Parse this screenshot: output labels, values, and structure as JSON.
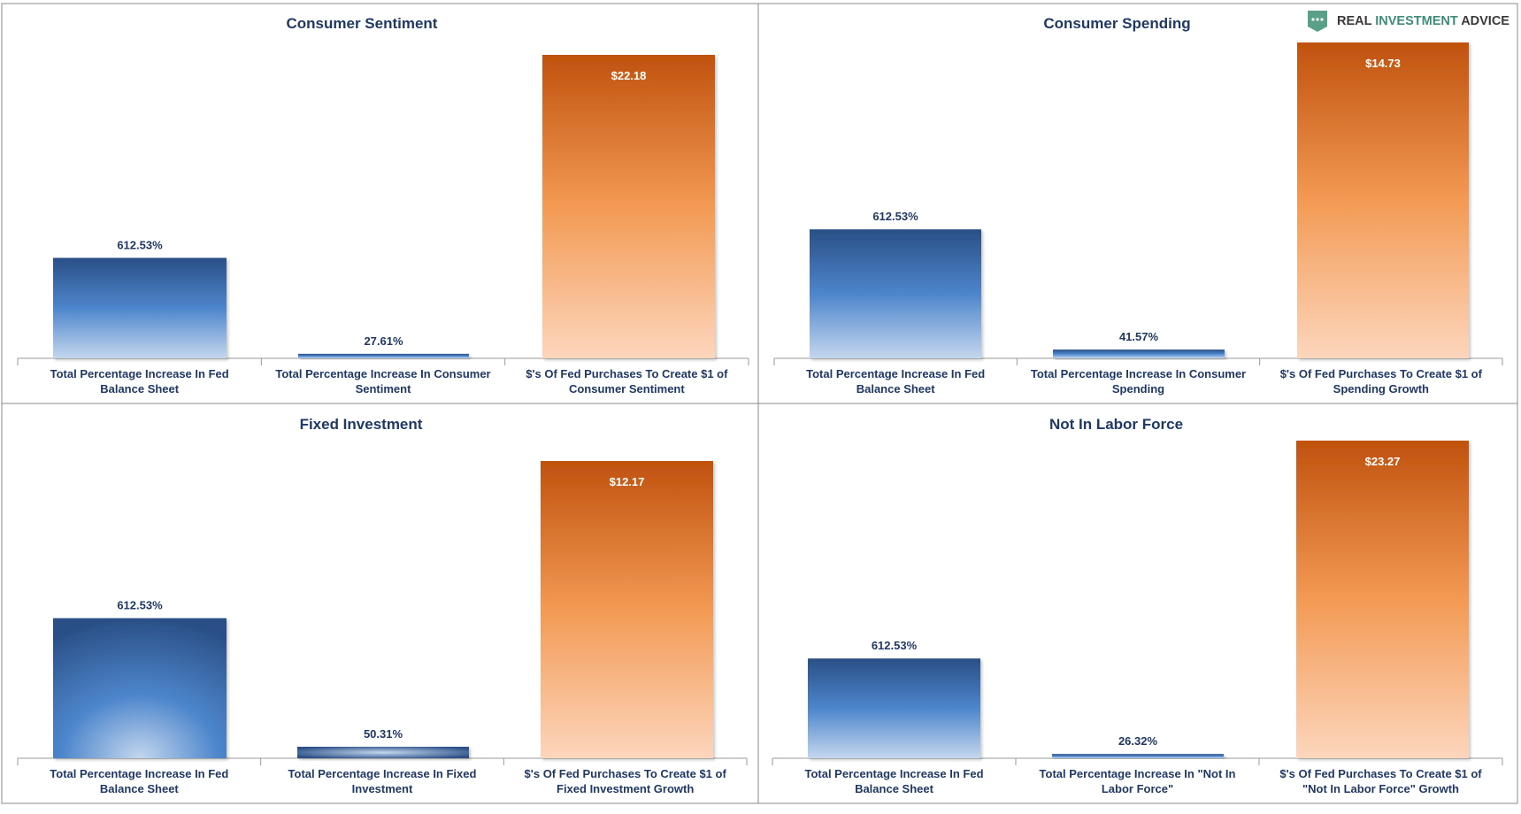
{
  "brand": {
    "name_part1": "REAL ",
    "name_part2": "INVESTMENT",
    "name_part3": " ADVICE",
    "logo_color": "#5aa089",
    "accent_color": "#3e8e76"
  },
  "colors": {
    "blue_dark": "#2a4f86",
    "blue_mid": "#4d86cc",
    "blue_light": "#c4d7ee",
    "orange_dark": "#c0520e",
    "orange_mid": "#f39a54",
    "orange_light": "#fcd6bd",
    "title_color": "#1f3864",
    "label_color": "#1f3864"
  },
  "chart_data": [
    {
      "type": "bar",
      "title": "Consumer Sentiment",
      "categories": [
        "Total Percentage Increase In Fed Balance Sheet",
        "Total Percentage Increase In Consumer Sentiment",
        "$'s Of Fed Purchases To Create $1 of Consumer Sentiment"
      ],
      "values": [
        612.53,
        27.61,
        22.18
      ],
      "data_labels": [
        "612.53%",
        "27.61%",
        "$22.18"
      ],
      "series_kind": [
        "percent",
        "percent",
        "dollar"
      ],
      "dollar_ylim": [
        0,
        26.1
      ],
      "percent_ylim": [
        0,
        1850
      ]
    },
    {
      "type": "bar",
      "title": "Consumer Spending",
      "categories": [
        "Total Percentage Increase In Fed Balance Sheet",
        "Total Percentage Increase In Consumer Spending",
        "$'s Of Fed Purchases To Create $1 of Spending Growth"
      ],
      "values": [
        612.53,
        41.57,
        14.73
      ],
      "data_labels": [
        "612.53%",
        "41.57%",
        "$14.73"
      ],
      "series_kind": [
        "percent",
        "percent",
        "dollar"
      ],
      "dollar_ylim": [
        0,
        15.2
      ],
      "percent_ylim": [
        0,
        1500
      ]
    },
    {
      "type": "bar",
      "title": "Fixed Investment",
      "categories": [
        "Total Percentage Increase In Fed Balance Sheet",
        "Total Percentage Increase In Fixed Investment",
        "$'s Of Fed Purchases To Create $1 of Fixed Investment Growth"
      ],
      "values": [
        612.53,
        50.31,
        12.17
      ],
      "data_labels": [
        "612.53%",
        "50.31%",
        "$12.17"
      ],
      "series_kind": [
        "percent",
        "percent",
        "dollar"
      ],
      "dollar_ylim": [
        0,
        12.8
      ],
      "percent_ylim": [
        0,
        1300
      ]
    },
    {
      "type": "bar",
      "title": "Not In Labor Force",
      "categories": [
        "Total Percentage Increase In Fed Balance Sheet",
        "Total Percentage Increase In \"Not In Labor Force\"",
        "$'s Of Fed Purchases To Create $1 of \"Not In Labor Force\" Growth"
      ],
      "values": [
        612.53,
        26.32,
        23.27
      ],
      "data_labels": [
        "612.53%",
        "26.32%",
        "$23.27"
      ],
      "series_kind": [
        "percent",
        "percent",
        "dollar"
      ],
      "dollar_ylim": [
        0,
        24.0
      ],
      "percent_ylim": [
        0,
        1950
      ]
    }
  ]
}
